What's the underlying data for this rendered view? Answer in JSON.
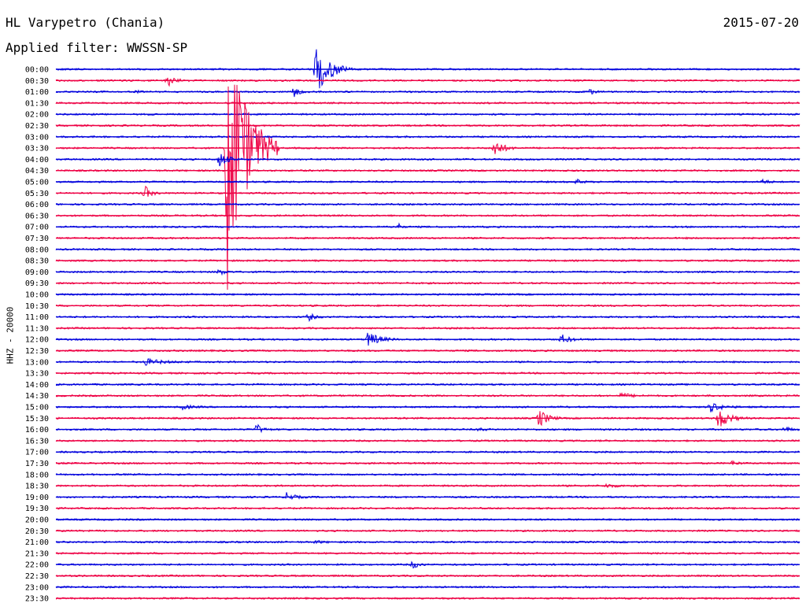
{
  "header": {
    "title": "HL Varypetro (Chania)",
    "filter": "Applied filter: WWSSN-SP",
    "date": "2015-07-20"
  },
  "chart_data": {
    "type": "line",
    "ylabel": "HHZ - 20000",
    "colors": [
      "#0000dd",
      "#ee0044"
    ],
    "rows": [
      "00:00",
      "00:30",
      "01:00",
      "01:30",
      "02:00",
      "02:30",
      "03:00",
      "03:30",
      "04:00",
      "04:30",
      "05:00",
      "05:30",
      "06:00",
      "06:30",
      "07:00",
      "07:30",
      "08:00",
      "08:30",
      "09:00",
      "09:30",
      "10:00",
      "10:30",
      "11:00",
      "11:30",
      "12:00",
      "12:30",
      "13:00",
      "13:30",
      "14:00",
      "14:30",
      "15:00",
      "15:30",
      "16:00",
      "16:30",
      "17:00",
      "17:30",
      "18:00",
      "18:30",
      "19:00",
      "19:30",
      "20:00",
      "20:30",
      "21:00",
      "21:30",
      "22:00",
      "22:30",
      "23:00",
      "23:30"
    ],
    "events": [
      {
        "row": 0,
        "x": 0.35,
        "amp": 32,
        "dur": 0.05
      },
      {
        "row": 1,
        "x": 0.15,
        "amp": 7,
        "dur": 0.03
      },
      {
        "row": 2,
        "x": 0.11,
        "amp": 3,
        "dur": 0.01
      },
      {
        "row": 2,
        "x": 0.32,
        "amp": 6,
        "dur": 0.02
      },
      {
        "row": 2,
        "x": 0.72,
        "amp": 8,
        "dur": 0.01
      },
      {
        "row": 7,
        "x": 0.23,
        "amp": 190,
        "dur": 0.07
      },
      {
        "row": 7,
        "x": 0.59,
        "amp": 12,
        "dur": 0.03
      },
      {
        "row": 8,
        "x": 0.22,
        "amp": 10,
        "dur": 0.03
      },
      {
        "row": 10,
        "x": 0.7,
        "amp": 3,
        "dur": 0.02
      },
      {
        "row": 10,
        "x": 0.95,
        "amp": 3,
        "dur": 0.02
      },
      {
        "row": 11,
        "x": 0.12,
        "amp": 9,
        "dur": 0.02
      },
      {
        "row": 14,
        "x": 0.46,
        "amp": 5,
        "dur": 0.01
      },
      {
        "row": 18,
        "x": 0.22,
        "amp": 4,
        "dur": 0.02
      },
      {
        "row": 22,
        "x": 0.34,
        "amp": 5,
        "dur": 0.02
      },
      {
        "row": 24,
        "x": 0.42,
        "amp": 10,
        "dur": 0.04
      },
      {
        "row": 24,
        "x": 0.68,
        "amp": 6,
        "dur": 0.03
      },
      {
        "row": 26,
        "x": 0.12,
        "amp": 4,
        "dur": 0.06
      },
      {
        "row": 29,
        "x": 0.76,
        "amp": 3,
        "dur": 0.04
      },
      {
        "row": 30,
        "x": 0.17,
        "amp": 3,
        "dur": 0.03
      },
      {
        "row": 30,
        "x": 0.88,
        "amp": 6,
        "dur": 0.04
      },
      {
        "row": 31,
        "x": 0.65,
        "amp": 12,
        "dur": 0.03
      },
      {
        "row": 31,
        "x": 0.89,
        "amp": 14,
        "dur": 0.04
      },
      {
        "row": 32,
        "x": 0.27,
        "amp": 7,
        "dur": 0.02
      },
      {
        "row": 32,
        "x": 0.57,
        "amp": 2,
        "dur": 0.02
      },
      {
        "row": 32,
        "x": 0.98,
        "amp": 4,
        "dur": 0.02
      },
      {
        "row": 35,
        "x": 0.91,
        "amp": 3,
        "dur": 0.02
      },
      {
        "row": 37,
        "x": 0.74,
        "amp": 2,
        "dur": 0.04
      },
      {
        "row": 38,
        "x": 0.31,
        "amp": 5,
        "dur": 0.03
      },
      {
        "row": 42,
        "x": 0.35,
        "amp": 2,
        "dur": 0.02
      },
      {
        "row": 44,
        "x": 0.48,
        "amp": 5,
        "dur": 0.02
      }
    ]
  }
}
